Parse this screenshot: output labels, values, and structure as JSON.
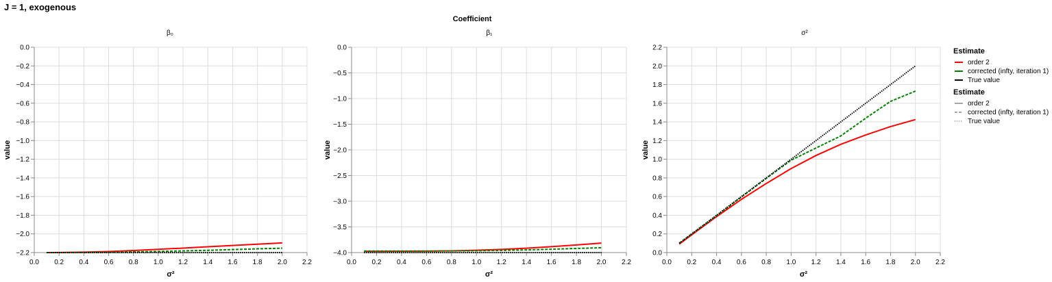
{
  "figure": {
    "title": "J = 1, exogenous",
    "column_header": "Coefficient"
  },
  "colors": {
    "order2": "#ff0000",
    "corrected": "#008000",
    "true_value": "#000000",
    "grid": "#dddddd",
    "axis": "#888888"
  },
  "legend": {
    "color_title": "Estimate",
    "dash_title": "Estimate",
    "color_items": [
      "order 2",
      "corrected (infty, iteration 1)",
      "True value"
    ],
    "dash_items": [
      "order 2",
      "corrected (infty, iteration 1)",
      "True value"
    ]
  },
  "chart_data": [
    {
      "type": "line",
      "title": "β₀",
      "xlabel": "σ²",
      "ylabel": "value",
      "xlim": [
        0,
        2.2
      ],
      "ylim": [
        -2.2,
        0
      ],
      "xticks": [
        0.0,
        0.2,
        0.4,
        0.6,
        0.8,
        1.0,
        1.2,
        1.4,
        1.6,
        1.8,
        2.0,
        2.2
      ],
      "yticks": [
        0.0,
        -0.2,
        -0.4,
        -0.6,
        -0.8,
        -1.0,
        -1.2,
        -1.4,
        -1.6,
        -1.8,
        -2.0,
        -2.2
      ],
      "tick_decimals": 1,
      "grid": true,
      "x": [
        0.1,
        0.2,
        0.4,
        0.6,
        0.8,
        1.0,
        1.2,
        1.4,
        1.6,
        1.8,
        2.0
      ],
      "series": [
        {
          "name": "order 2",
          "style": "solid",
          "values": [
            -2.2,
            -2.199,
            -2.195,
            -2.189,
            -2.178,
            -2.165,
            -2.152,
            -2.138,
            -2.124,
            -2.11,
            -2.096
          ]
        },
        {
          "name": "corrected (infty, iteration 1)",
          "style": "dashed",
          "values": [
            -2.2,
            -2.2,
            -2.199,
            -2.197,
            -2.193,
            -2.188,
            -2.182,
            -2.176,
            -2.168,
            -2.16,
            -2.153
          ]
        },
        {
          "name": "True value",
          "style": "dotted",
          "values": [
            -2.2,
            -2.2,
            -2.2,
            -2.2,
            -2.2,
            -2.2,
            -2.2,
            -2.2,
            -2.2,
            -2.2,
            -2.2
          ]
        }
      ]
    },
    {
      "type": "line",
      "title": "β₁",
      "xlabel": "σ²",
      "ylabel": "value",
      "xlim": [
        0,
        2.2
      ],
      "ylim": [
        -4.0,
        0
      ],
      "xticks": [
        0.0,
        0.2,
        0.4,
        0.6,
        0.8,
        1.0,
        1.2,
        1.4,
        1.6,
        1.8,
        2.0,
        2.2
      ],
      "yticks": [
        0.0,
        -0.5,
        -1.0,
        -1.5,
        -2.0,
        -2.5,
        -3.0,
        -3.5,
        -4.0
      ],
      "tick_decimals": 1,
      "grid": true,
      "x": [
        0.1,
        0.2,
        0.4,
        0.6,
        0.8,
        1.0,
        1.2,
        1.4,
        1.6,
        1.8,
        2.0
      ],
      "series": [
        {
          "name": "order 2",
          "style": "solid",
          "values": [
            -3.975,
            -3.975,
            -3.974,
            -3.972,
            -3.966,
            -3.955,
            -3.938,
            -3.915,
            -3.885,
            -3.852,
            -3.815
          ]
        },
        {
          "name": "corrected (infty, iteration 1)",
          "style": "dashed",
          "values": [
            -3.97,
            -3.97,
            -3.97,
            -3.97,
            -3.968,
            -3.965,
            -3.958,
            -3.948,
            -3.935,
            -3.92,
            -3.905
          ]
        },
        {
          "name": "True value",
          "style": "dotted",
          "values": [
            -4.0,
            -4.0,
            -4.0,
            -4.0,
            -4.0,
            -4.0,
            -4.0,
            -4.0,
            -4.0,
            -4.0,
            -4.0
          ]
        }
      ]
    },
    {
      "type": "line",
      "title": "σ²",
      "xlabel": "σ²",
      "ylabel": "value",
      "xlim": [
        0,
        2.2
      ],
      "ylim": [
        0,
        2.2
      ],
      "xticks": [
        0.0,
        0.2,
        0.4,
        0.6,
        0.8,
        1.0,
        1.2,
        1.4,
        1.6,
        1.8,
        2.0,
        2.2
      ],
      "yticks": [
        0.0,
        0.2,
        0.4,
        0.6,
        0.8,
        1.0,
        1.2,
        1.4,
        1.6,
        1.8,
        2.0,
        2.2
      ],
      "tick_decimals": 1,
      "grid": true,
      "x": [
        0.1,
        0.2,
        0.4,
        0.6,
        0.8,
        1.0,
        1.2,
        1.4,
        1.6,
        1.8,
        2.0
      ],
      "series": [
        {
          "name": "order 2",
          "style": "solid",
          "values": [
            0.09,
            0.19,
            0.385,
            0.57,
            0.74,
            0.9,
            1.04,
            1.16,
            1.26,
            1.35,
            1.425
          ]
        },
        {
          "name": "corrected (infty, iteration 1)",
          "style": "dashed",
          "values": [
            0.1,
            0.2,
            0.395,
            0.595,
            0.795,
            0.99,
            1.12,
            1.25,
            1.44,
            1.62,
            1.73
          ]
        },
        {
          "name": "True value",
          "style": "dotted",
          "values": [
            0.1,
            0.2,
            0.4,
            0.6,
            0.8,
            1.0,
            1.2,
            1.4,
            1.6,
            1.8,
            2.0
          ]
        }
      ]
    }
  ]
}
